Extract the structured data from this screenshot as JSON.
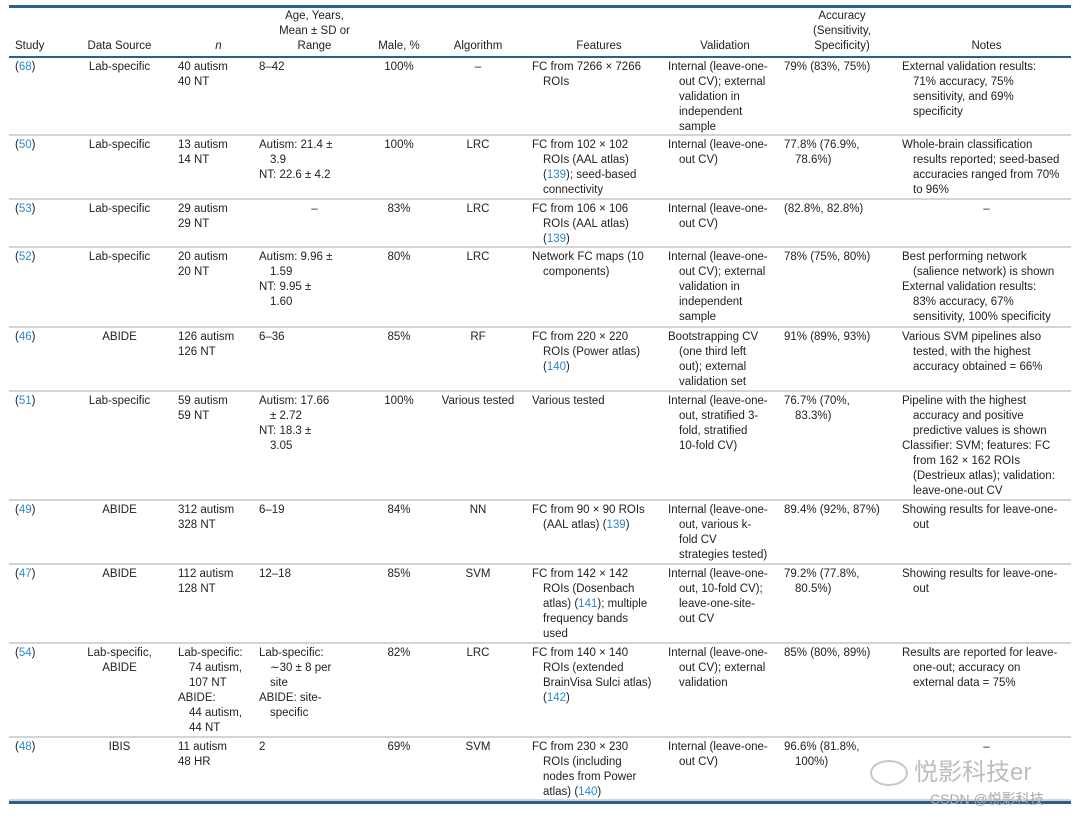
{
  "table": {
    "headers": [
      "Study",
      "Data Source",
      "n",
      "Age, Years,\nMean ± SD or\nRange",
      "Male, %",
      "Algorithm",
      "Features",
      "Validation",
      "Accuracy\n(Sensitivity,\nSpecificity)",
      "Notes"
    ],
    "rows": [
      {
        "ref": "68",
        "cells": [
          [
            "Lab-specific"
          ],
          [
            "40 autism",
            "40 NT"
          ],
          [
            "8–42"
          ],
          [
            "100%"
          ],
          [
            "–"
          ],
          [
            "FC from 7266 × 7266\nROIs"
          ],
          [
            "Internal (leave-one-\nout CV); external\nvalidation in\nindependent\nsample"
          ],
          [
            "79% (83%, 75%)"
          ],
          [
            "External validation results:\n71% accuracy, 75%\nsensitivity, and 69%\nspecificity"
          ]
        ]
      },
      {
        "ref": "50",
        "cells": [
          [
            "Lab-specific"
          ],
          [
            "13 autism",
            "14 NT"
          ],
          [
            "Autism: 21.4 ±\n3.9",
            "NT: 22.6 ± 4.2"
          ],
          [
            "100%"
          ],
          [
            "LRC"
          ],
          [
            "FC from 102 × 102\nROIs (AAL atlas)\n(139); seed-based\nconnectivity"
          ],
          [
            "Internal (leave-one-\nout CV)"
          ],
          [
            "77.8% (76.9%,\n78.6%)"
          ],
          [
            "Whole-brain classification\nresults reported; seed-based\naccuracies ranged from 70%\nto 96%"
          ]
        ]
      },
      {
        "ref": "53",
        "cells": [
          [
            "Lab-specific"
          ],
          [
            "29 autism",
            "29 NT"
          ],
          [
            "–"
          ],
          [
            "83%"
          ],
          [
            "LRC"
          ],
          [
            "FC from 106 × 106\nROIs (AAL atlas)\n(139)"
          ],
          [
            "Internal (leave-one-\nout CV)"
          ],
          [
            "(82.8%, 82.8%)"
          ],
          [
            "–"
          ]
        ]
      },
      {
        "ref": "52",
        "cells": [
          [
            "Lab-specific"
          ],
          [
            "20 autism",
            "20 NT"
          ],
          [
            "Autism: 9.96 ±\n1.59",
            "NT: 9.95 ±\n1.60"
          ],
          [
            "80%"
          ],
          [
            "LRC"
          ],
          [
            "Network FC maps (10\ncomponents)"
          ],
          [
            "Internal (leave-one-\nout CV); external\nvalidation in\nindependent\nsample"
          ],
          [
            "78% (75%, 80%)"
          ],
          [
            "Best performing network\n(salience network) is shown",
            "External validation results:\n83% accuracy, 67%\nsensitivity, 100% specificity"
          ]
        ]
      },
      {
        "ref": "46",
        "cells": [
          [
            "ABIDE"
          ],
          [
            "126 autism",
            "126 NT"
          ],
          [
            "6–36"
          ],
          [
            "85%"
          ],
          [
            "RF"
          ],
          [
            "FC from 220 × 220\nROIs (Power atlas)\n(140)"
          ],
          [
            "Bootstrapping CV\n(one third left\nout); external\nvalidation set"
          ],
          [
            "91% (89%, 93%)"
          ],
          [
            "Various SVM pipelines also\ntested, with the highest\naccuracy obtained = 66%"
          ]
        ]
      },
      {
        "ref": "51",
        "cells": [
          [
            "Lab-specific"
          ],
          [
            "59 autism",
            "59 NT"
          ],
          [
            "Autism: 17.66\n± 2.72",
            "NT: 18.3 ±\n3.05"
          ],
          [
            "100%"
          ],
          [
            "Various tested"
          ],
          [
            "Various tested"
          ],
          [
            "Internal (leave-one-\nout, stratified 3-\nfold, stratified\n10-fold CV)"
          ],
          [
            "76.7% (70%,\n83.3%)"
          ],
          [
            "Pipeline with the highest\naccuracy and positive\npredictive values is shown",
            "Classifier: SVM; features: FC\nfrom 162 × 162 ROIs\n(Destrieux atlas); validation:\nleave-one-out CV"
          ]
        ]
      },
      {
        "ref": "49",
        "cells": [
          [
            "ABIDE"
          ],
          [
            "312 autism",
            "328 NT"
          ],
          [
            "6–19"
          ],
          [
            "84%"
          ],
          [
            "NN"
          ],
          [
            "FC from 90 × 90 ROIs\n(AAL atlas) (139)"
          ],
          [
            "Internal (leave-one-\nout, various k-\nfold CV\nstrategies tested)"
          ],
          [
            "89.4% (92%, 87%)"
          ],
          [
            "Showing results for leave-one-\nout"
          ]
        ]
      },
      {
        "ref": "47",
        "cells": [
          [
            "ABIDE"
          ],
          [
            "112 autism",
            "128 NT"
          ],
          [
            "12–18"
          ],
          [
            "85%"
          ],
          [
            "SVM"
          ],
          [
            "FC from 142 × 142\nROIs (Dosenbach\natlas) (141); multiple\nfrequency bands\nused"
          ],
          [
            "Internal (leave-one-\nout, 10-fold CV);\nleave-one-site-\nout CV"
          ],
          [
            "79.2% (77.8%,\n80.5%)"
          ],
          [
            "Showing results for leave-one-\nout"
          ]
        ]
      },
      {
        "ref": "54",
        "cells": [
          [
            "Lab-specific,\nABIDE"
          ],
          [
            "Lab-specific:\n74 autism,\n107 NT",
            "ABIDE:\n44 autism,\n44 NT"
          ],
          [
            "Lab-specific:\n∼30 ± 8 per\nsite",
            "ABIDE: site-\nspecific"
          ],
          [
            "82%"
          ],
          [
            "LRC"
          ],
          [
            "FC from 140 × 140\nROIs (extended\nBrainVisa Sulci atlas)\n(142)"
          ],
          [
            "Internal (leave-one-\nout CV); external\nvalidation"
          ],
          [
            "85% (80%, 89%)"
          ],
          [
            "Results are reported for leave-\none-out; accuracy on\nexternal data = 75%"
          ]
        ]
      },
      {
        "ref": "48",
        "cells": [
          [
            "IBIS"
          ],
          [
            "11 autism",
            "48 HR"
          ],
          [
            "2"
          ],
          [
            "69%"
          ],
          [
            "SVM"
          ],
          [
            "FC from 230 × 230\nROIs (including\nnodes from Power\natlas) (140)"
          ],
          [
            "Internal (leave-one-\nout CV)"
          ],
          [
            "96.6% (81.8%,\n100%)"
          ],
          [
            "–"
          ]
        ]
      }
    ]
  },
  "watermark": {
    "brand": "悦影科技er",
    "csdn": "CSDN @悦影科技"
  },
  "colors": {
    "rule": "#2b5f8e",
    "ref_link": "#2a8ad0",
    "row_divider": "#d4d4d4"
  }
}
